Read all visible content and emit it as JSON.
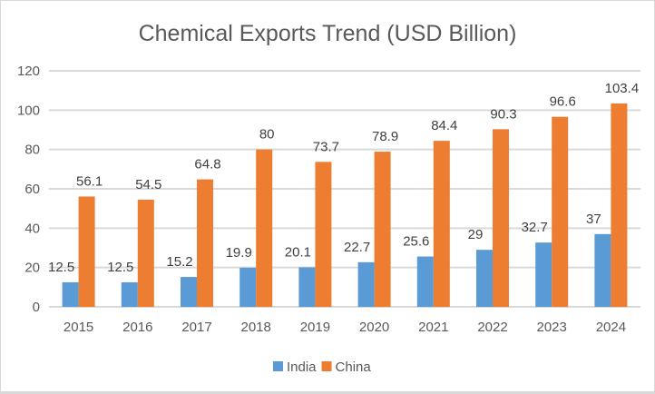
{
  "chart_data": {
    "type": "bar",
    "title": "Chemical Exports Trend (USD Billion)",
    "xlabel": "",
    "ylabel": "",
    "categories": [
      "2015",
      "2016",
      "2017",
      "2018",
      "2019",
      "2020",
      "2021",
      "2022",
      "2023",
      "2024"
    ],
    "series": [
      {
        "name": "India",
        "color": "#5B9BD5",
        "values": [
          12.5,
          12.5,
          15.2,
          19.9,
          20.1,
          22.7,
          25.6,
          29,
          32.7,
          37
        ]
      },
      {
        "name": "China",
        "color": "#ED7D31",
        "values": [
          56.1,
          54.5,
          64.8,
          80,
          73.7,
          78.9,
          84.4,
          90.3,
          96.6,
          103.4
        ]
      }
    ],
    "ylim": [
      0,
      120
    ],
    "yticks": [
      0,
      20,
      40,
      60,
      80,
      100,
      120
    ],
    "grid": true,
    "gridColor": "#d9d9d9",
    "data_labels": true,
    "legend": "bottom"
  }
}
